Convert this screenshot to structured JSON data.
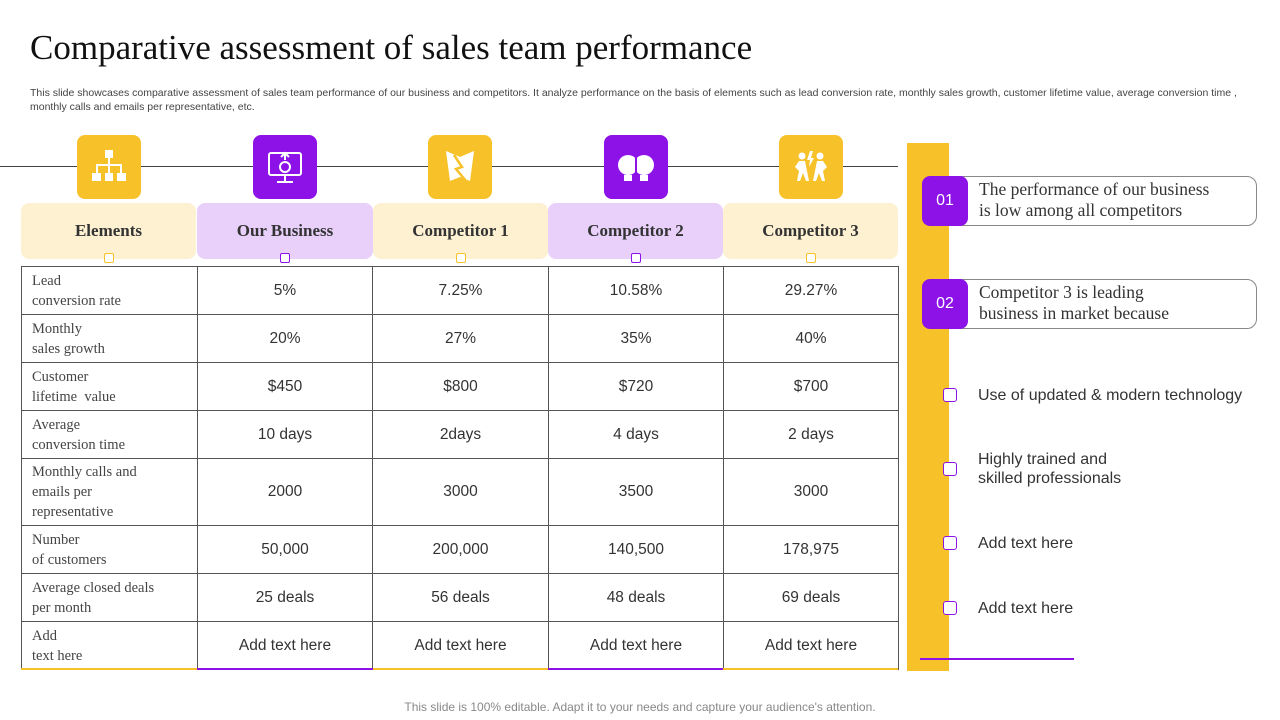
{
  "title": "Comparative assessment of sales team performance",
  "subtitle": "This slide showcases comparative assessment of sales team performance of our business and competitors. It analyze performance on the basis of elements such as lead conversion rate, monthly sales growth, customer lifetime value, average conversion time , monthly calls and emails per representative, etc.",
  "columns": [
    {
      "label": "Elements",
      "icon": "hierarchy-icon"
    },
    {
      "label": "Our Business",
      "icon": "presentation-screen-icon"
    },
    {
      "label": "Competitor 1",
      "icon": "broken-shield-icon"
    },
    {
      "label": "Competitor 2",
      "icon": "head-to-head-icon"
    },
    {
      "label": "Competitor 3",
      "icon": "competition-figures-icon"
    }
  ],
  "rows": [
    {
      "label": [
        "Lead",
        "conversion rate"
      ],
      "values": [
        "5%",
        "7.25%",
        "10.58%",
        "29.27%"
      ]
    },
    {
      "label": [
        "Monthly",
        "sales growth"
      ],
      "values": [
        "20%",
        "27%",
        "35%",
        "40%"
      ]
    },
    {
      "label": [
        "Customer",
        "lifetime  value"
      ],
      "values": [
        "$450",
        "$800",
        "$720",
        "$700"
      ]
    },
    {
      "label": [
        "Average",
        "conversion time"
      ],
      "values": [
        "10 days",
        "2days",
        "4 days",
        "2 days"
      ]
    },
    {
      "label": [
        "Monthly calls and",
        "emails per",
        "representative"
      ],
      "values": [
        "2000",
        "3000",
        "3500",
        "3000"
      ]
    },
    {
      "label": [
        "Number",
        "of customers"
      ],
      "values": [
        "50,000",
        "200,000",
        "140,500",
        "178,975"
      ]
    },
    {
      "label": [
        "Average closed deals",
        "per month"
      ],
      "values": [
        "25 deals",
        "56 deals",
        "48 deals",
        "69 deals"
      ]
    },
    {
      "label": [
        "Add",
        "text here"
      ],
      "values": [
        "Add text here",
        "Add text here",
        "Add text here",
        "Add text here"
      ]
    }
  ],
  "callouts": [
    {
      "num": "01",
      "lines": [
        "The performance of our business",
        "is low among all competitors"
      ]
    },
    {
      "num": "02",
      "lines": [
        "Competitor 3 is leading",
        "business in market because"
      ]
    }
  ],
  "bullets": [
    {
      "lines": [
        "Use of updated & modern technology"
      ]
    },
    {
      "lines": [
        "Highly trained and",
        "skilled professionals"
      ]
    },
    {
      "lines": [
        "Add text here"
      ]
    },
    {
      "lines": [
        "Add text here"
      ]
    }
  ],
  "footer": "This slide is 100% editable. Adapt it to your needs and capture your audience's attention.",
  "colors": {
    "yellow": "#f7c12a",
    "purple": "#8c12e8",
    "yellow_light": "#fdf1d2",
    "purple_light": "#e8d0fb"
  }
}
